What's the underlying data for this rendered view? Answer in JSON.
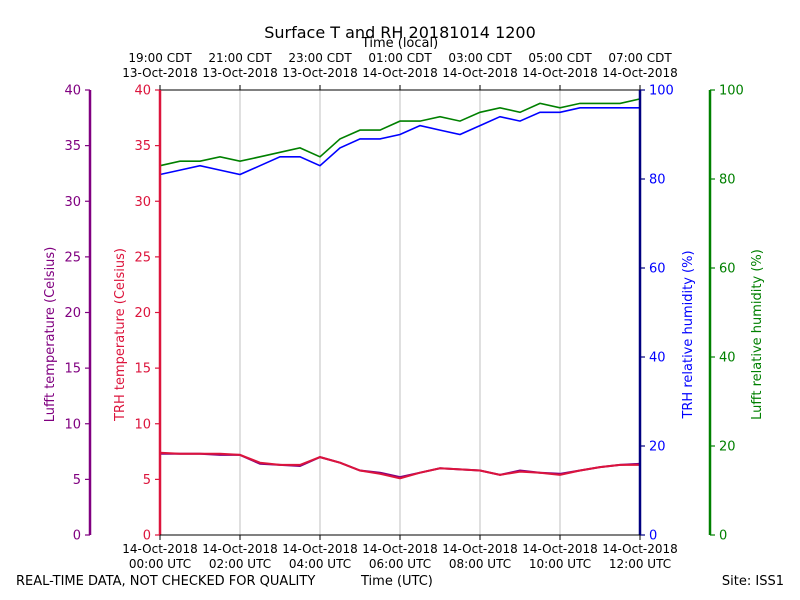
{
  "title": "Surface T and RH 20181014 1200",
  "top_axis_label": "Time (local)",
  "bottom_axis_label": "Time (UTC)",
  "footer_left": "REAL-TIME DATA, NOT CHECKED FOR QUALITY",
  "footer_right": "Site: ISS1",
  "colors": {
    "lufft_temp": "#800080",
    "trh_temp": "#dc143c",
    "trh_rh": "#0000ff",
    "lufft_rh": "#008000",
    "rh_axis_blue": "#000080",
    "grid": "#b0b0b0"
  },
  "chart_data": {
    "type": "line",
    "x_unit": "hours UTC since 14-Oct-2018 00:00",
    "xlim": [
      0,
      12
    ],
    "bottom_ticks": [
      {
        "x": 0,
        "line1": "14-Oct-2018",
        "line2": "00:00 UTC"
      },
      {
        "x": 2,
        "line1": "14-Oct-2018",
        "line2": "02:00 UTC"
      },
      {
        "x": 4,
        "line1": "14-Oct-2018",
        "line2": "04:00 UTC"
      },
      {
        "x": 6,
        "line1": "14-Oct-2018",
        "line2": "06:00 UTC"
      },
      {
        "x": 8,
        "line1": "14-Oct-2018",
        "line2": "08:00 UTC"
      },
      {
        "x": 10,
        "line1": "14-Oct-2018",
        "line2": "10:00 UTC"
      },
      {
        "x": 12,
        "line1": "14-Oct-2018",
        "line2": "12:00 UTC"
      }
    ],
    "top_ticks": [
      {
        "x": 0,
        "line1": "19:00 CDT",
        "line2": "13-Oct-2018"
      },
      {
        "x": 2,
        "line1": "21:00 CDT",
        "line2": "13-Oct-2018"
      },
      {
        "x": 4,
        "line1": "23:00 CDT",
        "line2": "13-Oct-2018"
      },
      {
        "x": 6,
        "line1": "01:00 CDT",
        "line2": "14-Oct-2018"
      },
      {
        "x": 8,
        "line1": "03:00 CDT",
        "line2": "14-Oct-2018"
      },
      {
        "x": 10,
        "line1": "05:00 CDT",
        "line2": "14-Oct-2018"
      },
      {
        "x": 12,
        "line1": "07:00 CDT",
        "line2": "14-Oct-2018"
      }
    ],
    "temp_axes": {
      "ylim": [
        0,
        40
      ],
      "ticks": [
        0,
        5,
        10,
        15,
        20,
        25,
        30,
        35,
        40
      ],
      "lufft_label": "Lufft temperature (Celsius)",
      "trh_label": "TRH temperature (Celsius)"
    },
    "rh_axes": {
      "ylim": [
        0,
        100
      ],
      "ticks": [
        0,
        20,
        40,
        60,
        80,
        100
      ],
      "trh_label": "TRH relative humidity (%)",
      "lufft_label": "Lufft relative humidity (%)"
    },
    "series": [
      {
        "key": "lufft_temp",
        "axis": "temp",
        "x": [
          0,
          0.5,
          1,
          1.5,
          2,
          2.5,
          3,
          3.5,
          4,
          4.5,
          5,
          5.5,
          6,
          6.5,
          7,
          7.5,
          8,
          8.5,
          9,
          9.5,
          10,
          10.5,
          11,
          11.5,
          12
        ],
        "values": [
          7.3,
          7.3,
          7.3,
          7.2,
          7.2,
          6.4,
          6.3,
          6.2,
          7.0,
          6.5,
          5.8,
          5.6,
          5.2,
          5.6,
          6.0,
          5.9,
          5.8,
          5.4,
          5.8,
          5.6,
          5.5,
          5.8,
          6.1,
          6.3,
          6.4
        ]
      },
      {
        "key": "trh_temp",
        "axis": "temp",
        "x": [
          0,
          0.5,
          1,
          1.5,
          2,
          2.5,
          3,
          3.5,
          4,
          4.5,
          5,
          5.5,
          6,
          6.5,
          7,
          7.5,
          8,
          8.5,
          9,
          9.5,
          10,
          10.5,
          11,
          11.5,
          12
        ],
        "values": [
          7.4,
          7.3,
          7.3,
          7.3,
          7.2,
          6.5,
          6.3,
          6.3,
          7.0,
          6.5,
          5.8,
          5.5,
          5.1,
          5.6,
          6.0,
          5.9,
          5.8,
          5.4,
          5.7,
          5.6,
          5.4,
          5.8,
          6.1,
          6.3,
          6.3
        ]
      },
      {
        "key": "trh_rh",
        "axis": "rh",
        "x": [
          0,
          0.5,
          1,
          1.5,
          2,
          2.5,
          3,
          3.5,
          4,
          4.5,
          5,
          5.5,
          6,
          6.5,
          7,
          7.5,
          8,
          8.5,
          9,
          9.5,
          10,
          10.5,
          11,
          11.5,
          12
        ],
        "values": [
          81,
          82,
          83,
          82,
          81,
          83,
          85,
          85,
          83,
          87,
          89,
          89,
          90,
          92,
          91,
          90,
          92,
          94,
          93,
          95,
          95,
          96,
          96,
          96,
          96
        ]
      },
      {
        "key": "lufft_rh",
        "axis": "rh",
        "x": [
          0,
          0.5,
          1,
          1.5,
          2,
          2.5,
          3,
          3.5,
          4,
          4.5,
          5,
          5.5,
          6,
          6.5,
          7,
          7.5,
          8,
          8.5,
          9,
          9.5,
          10,
          10.5,
          11,
          11.5,
          12
        ],
        "values": [
          83,
          84,
          84,
          85,
          84,
          85,
          86,
          87,
          85,
          89,
          91,
          91,
          93,
          93,
          94,
          93,
          95,
          96,
          95,
          97,
          96,
          97,
          97,
          97,
          98
        ]
      }
    ]
  }
}
